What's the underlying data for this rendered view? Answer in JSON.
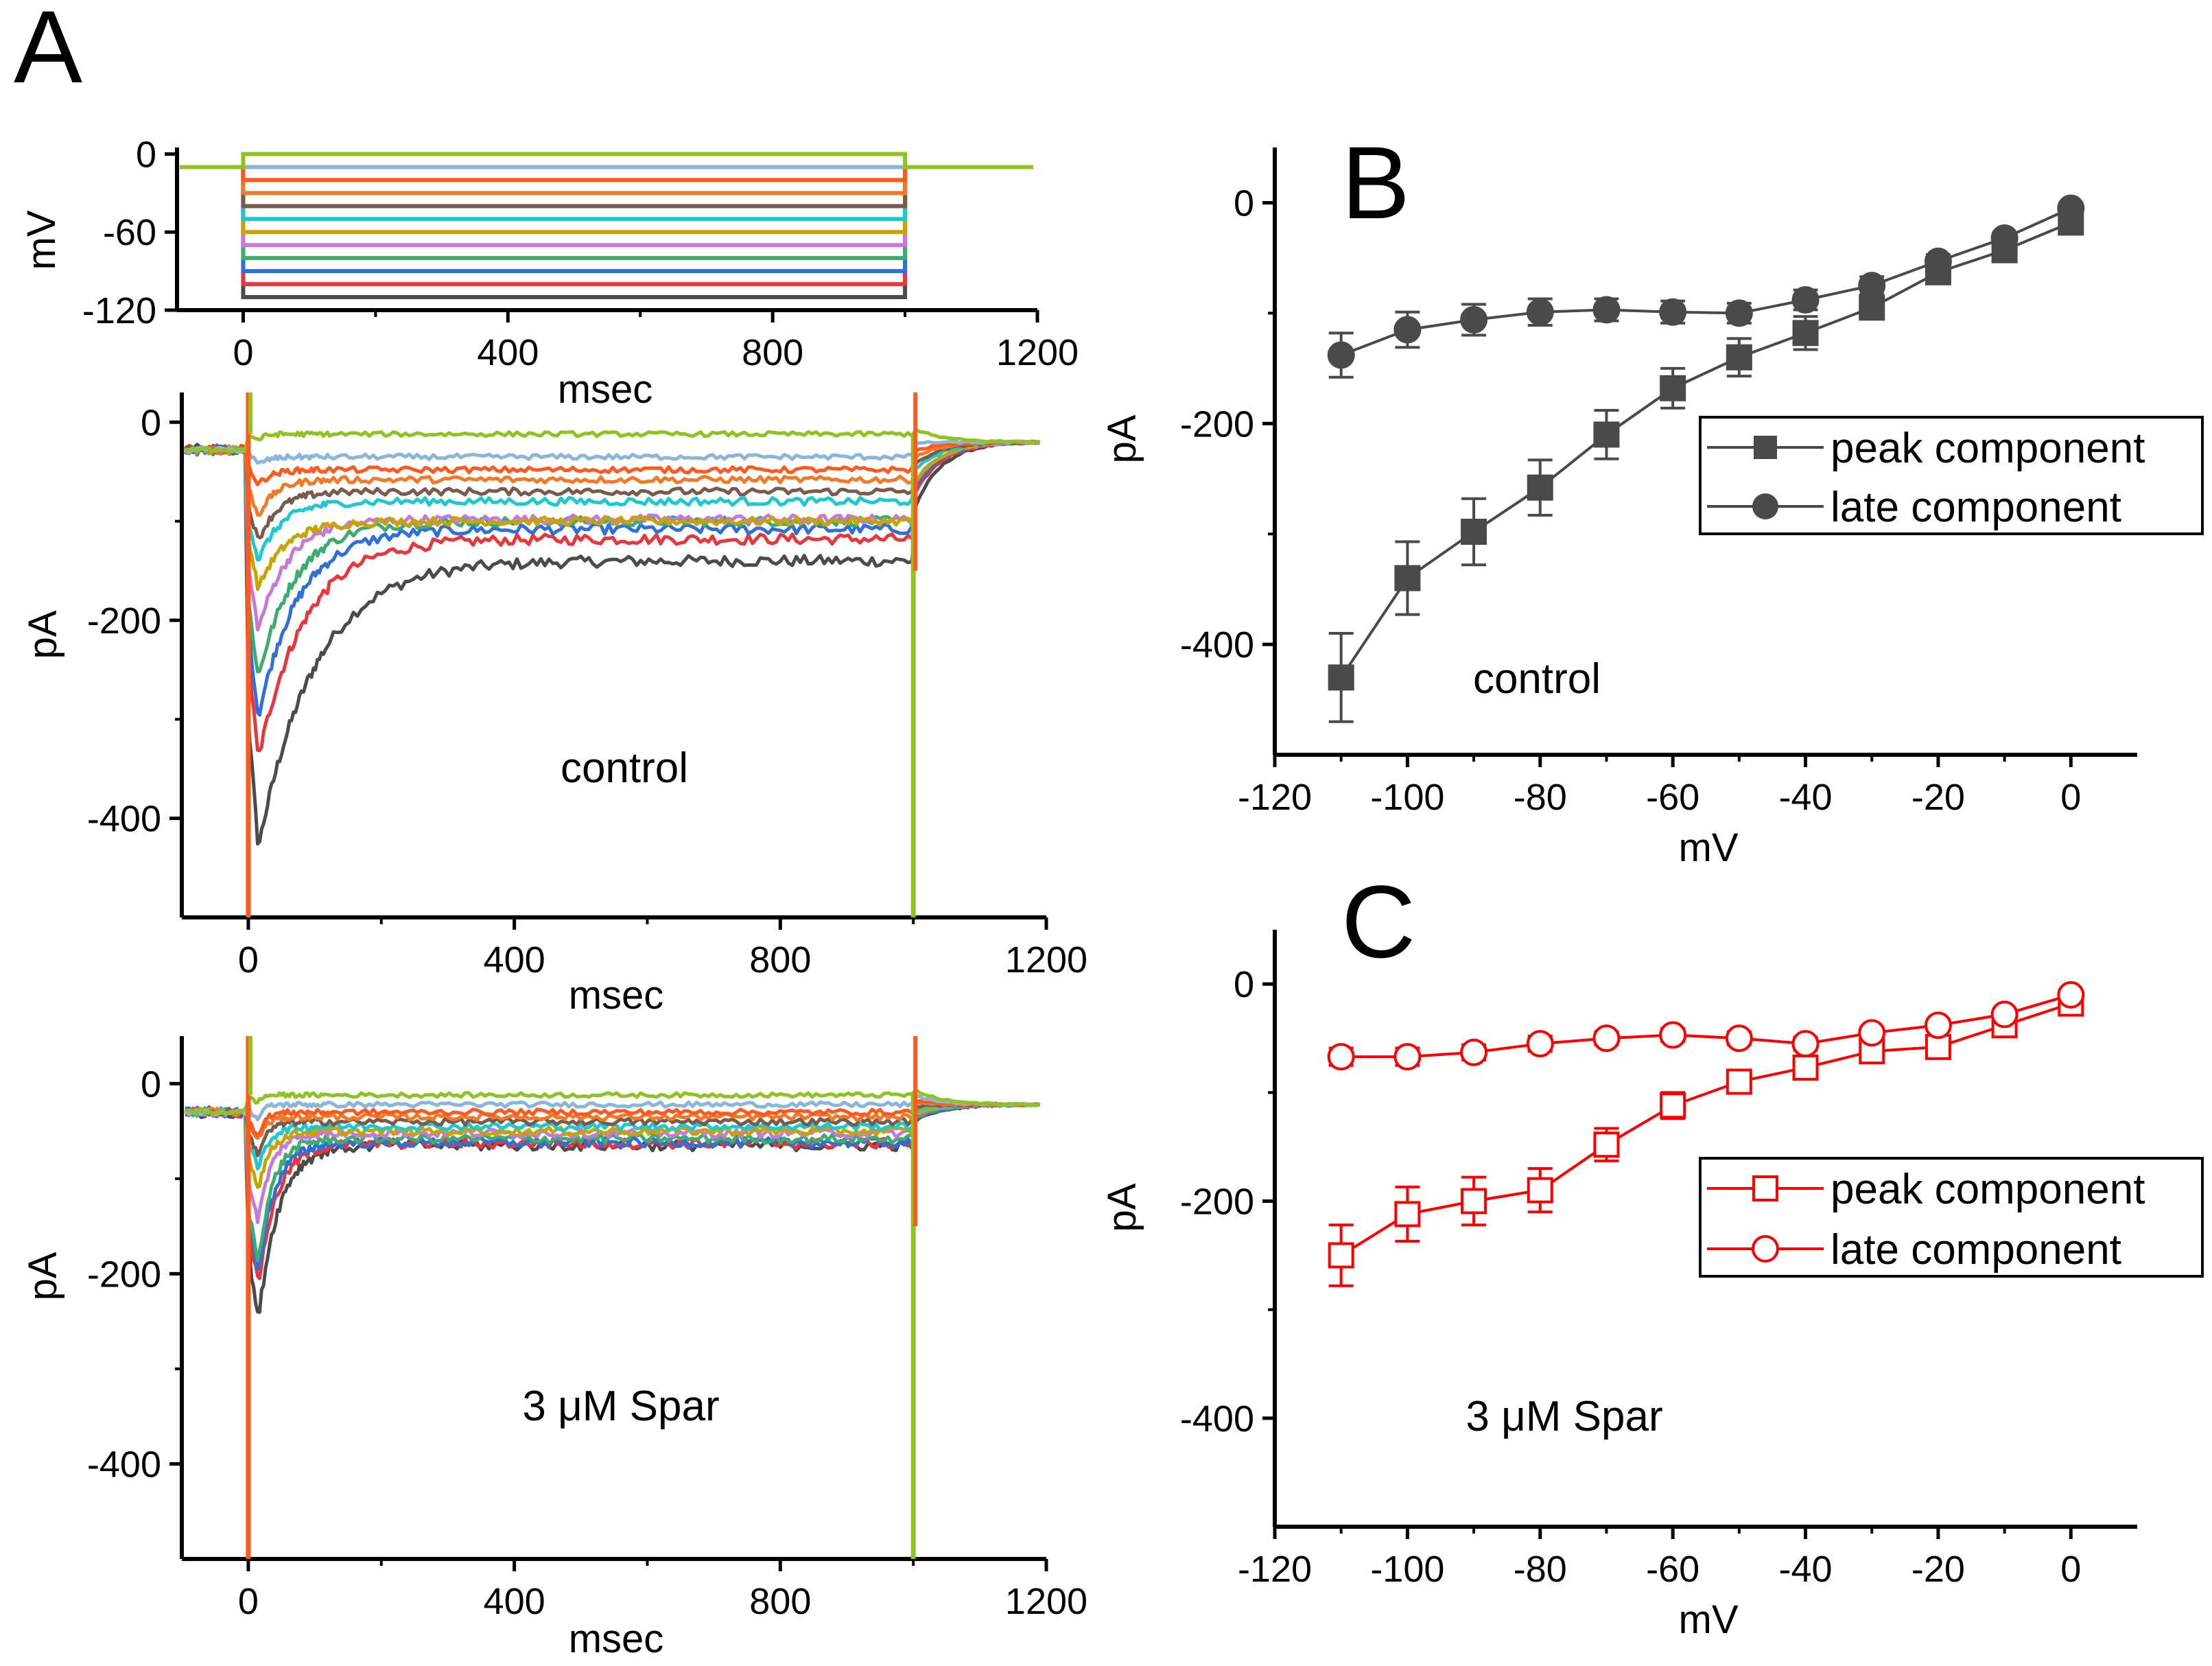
{
  "figure": {
    "panel_labels": {
      "a": "A",
      "b": "B",
      "c": "C"
    }
  },
  "colors": {
    "axis": "#000000",
    "control_series": "#4a4a4a",
    "spar_series": "#ff0000",
    "trace_palette": [
      "#4b4b4b",
      "#e8373c",
      "#2f6fd9",
      "#3cad6e",
      "#c67ad8",
      "#c8a400",
      "#1ec8cf",
      "#7a5a4a",
      "#f07a2a",
      "#ff5a1e",
      "#8ab6d9",
      "#8fc31f"
    ]
  },
  "chart_data": [
    {
      "id": "A_voltage",
      "type": "line",
      "xlabel": "msec",
      "ylabel": "mV",
      "xlim": [
        -100,
        1200
      ],
      "ylim": [
        -120,
        5
      ],
      "xticks": [
        0,
        400,
        800,
        1200
      ],
      "yticks": [
        0,
        -60,
        -120
      ],
      "holding_potential": -10,
      "step_start": 0,
      "step_end": 1000,
      "step_levels": [
        -110,
        -100,
        -90,
        -80,
        -70,
        -60,
        -50,
        -40,
        -30,
        -20,
        -10,
        0
      ]
    },
    {
      "id": "A_control",
      "type": "line",
      "xlabel": "msec",
      "ylabel": "pA",
      "note": "control",
      "xlim": [
        -100,
        1200
      ],
      "ylim": [
        -500,
        30
      ],
      "xticks": [
        0,
        400,
        800,
        1200
      ],
      "yticks": [
        0,
        -200,
        -400
      ],
      "step_levels": [
        -110,
        -100,
        -90,
        -80,
        -70,
        -60,
        -50,
        -40,
        -30,
        -20,
        -10,
        0
      ],
      "peak": [
        -430,
        -340,
        -298,
        -258,
        -210,
        -168,
        -140,
        -120,
        -95,
        -63,
        -43,
        -18
      ],
      "late": [
        -140,
        -118,
        -108,
        -100,
        -98,
        -100,
        -80,
        -70,
        -58,
        -48,
        -35,
        -12
      ],
      "baseline": -28,
      "tail": -20,
      "tau_ms": [
        85,
        70,
        60,
        55,
        45,
        40,
        35,
        30,
        25,
        20,
        15,
        10
      ]
    },
    {
      "id": "A_spar",
      "type": "line",
      "xlabel": "msec",
      "ylabel": "pA",
      "note": "3 μM Spar",
      "xlim": [
        -100,
        1200
      ],
      "ylim": [
        -500,
        50
      ],
      "xticks": [
        0,
        400,
        800,
        1200
      ],
      "yticks": [
        0,
        -200,
        -400
      ],
      "step_levels": [
        -110,
        -100,
        -90,
        -80,
        -70,
        -60,
        -50,
        -40,
        -30,
        -20,
        -10,
        0
      ],
      "peak": [
        -250,
        -212,
        -200,
        -188,
        -145,
        -110,
        -90,
        -75,
        -60,
        -55,
        -38,
        -20
      ],
      "late": [
        -65,
        -63,
        -62,
        -58,
        -52,
        -50,
        -45,
        -40,
        -35,
        -30,
        -22,
        -12
      ],
      "baseline": -30,
      "tail": -22,
      "tau_ms": [
        30,
        28,
        25,
        22,
        20,
        18,
        16,
        14,
        12,
        10,
        8,
        6
      ]
    },
    {
      "id": "B",
      "type": "line",
      "xlabel": "mV",
      "ylabel": "pA",
      "note": "control",
      "xlim": [
        -120,
        10
      ],
      "ylim": [
        -500,
        50
      ],
      "xticks": [
        -120,
        -100,
        -80,
        -60,
        -40,
        -20,
        0
      ],
      "yticks": [
        0,
        -200,
        -400
      ],
      "x": [
        -110,
        -100,
        -90,
        -80,
        -70,
        -60,
        -50,
        -40,
        -30,
        -20,
        -10,
        0
      ],
      "series": [
        {
          "name": "peak component",
          "marker": "square-filled",
          "values": [
            -430,
            -340,
            -298,
            -258,
            -210,
            -168,
            -140,
            -118,
            -95,
            -63,
            -43,
            -18
          ],
          "errors": [
            40,
            33,
            30,
            25,
            22,
            18,
            17,
            15,
            10,
            8,
            7,
            5
          ]
        },
        {
          "name": "late component",
          "marker": "circle-filled",
          "values": [
            -138,
            -115,
            -106,
            -99,
            -97,
            -99,
            -100,
            -88,
            -75,
            -53,
            -32,
            -5
          ],
          "errors": [
            20,
            16,
            14,
            12,
            10,
            10,
            9,
            9,
            8,
            6,
            5,
            3
          ]
        }
      ]
    },
    {
      "id": "C",
      "type": "line",
      "xlabel": "mV",
      "ylabel": "pA",
      "note": "3 μM Spar",
      "xlim": [
        -120,
        10
      ],
      "ylim": [
        -500,
        50
      ],
      "xticks": [
        -120,
        -100,
        -80,
        -60,
        -40,
        -20,
        0
      ],
      "yticks": [
        0,
        -200,
        -400
      ],
      "x": [
        -110,
        -100,
        -90,
        -80,
        -70,
        -60,
        -50,
        -40,
        -30,
        -20,
        -10,
        0
      ],
      "series": [
        {
          "name": "peak component",
          "marker": "square-open",
          "values": [
            -250,
            -212,
            -200,
            -190,
            -148,
            -112,
            -90,
            -77,
            -62,
            -58,
            -38,
            -18
          ],
          "errors": [
            28,
            25,
            22,
            20,
            15,
            12,
            10,
            10,
            8,
            8,
            6,
            5
          ]
        },
        {
          "name": "late component",
          "marker": "circle-open",
          "values": [
            -67,
            -67,
            -63,
            -55,
            -50,
            -47,
            -50,
            -55,
            -45,
            -38,
            -28,
            -10
          ],
          "errors": [
            8,
            8,
            7,
            7,
            6,
            6,
            6,
            6,
            5,
            5,
            4,
            3
          ]
        }
      ]
    }
  ]
}
